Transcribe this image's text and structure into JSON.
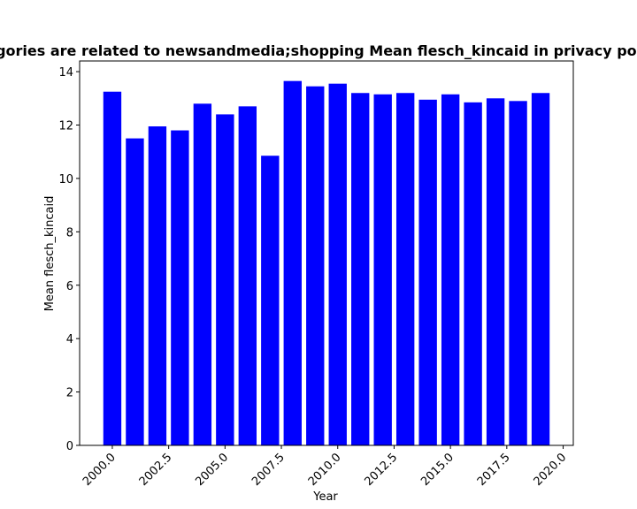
{
  "chart_data": {
    "type": "bar",
    "title": "Categories are related to newsandmedia;shopping Mean flesch_kincaid in privacy policies",
    "xlabel": "Year",
    "ylabel": "Mean flesch_kincaid",
    "x": [
      2000,
      2001,
      2002,
      2003,
      2004,
      2005,
      2006,
      2007,
      2008,
      2009,
      2010,
      2011,
      2012,
      2013,
      2014,
      2015,
      2016,
      2017,
      2018,
      2019
    ],
    "values": [
      13.25,
      11.5,
      11.95,
      11.8,
      12.8,
      12.4,
      12.7,
      10.85,
      13.65,
      13.45,
      13.55,
      13.2,
      13.15,
      13.2,
      12.95,
      13.15,
      12.85,
      13.0,
      12.9,
      13.2
    ],
    "xlim": [
      1998.55,
      2020.45
    ],
    "ylim": [
      0,
      14.4
    ],
    "xticks": [
      "2000.0",
      "2002.5",
      "2005.0",
      "2007.5",
      "2010.0",
      "2012.5",
      "2015.0",
      "2017.5",
      "2020.0"
    ],
    "yticks": [
      "0",
      "2",
      "4",
      "6",
      "8",
      "10",
      "12",
      "14"
    ],
    "bar_color": "#0000ff",
    "grid": false
  }
}
